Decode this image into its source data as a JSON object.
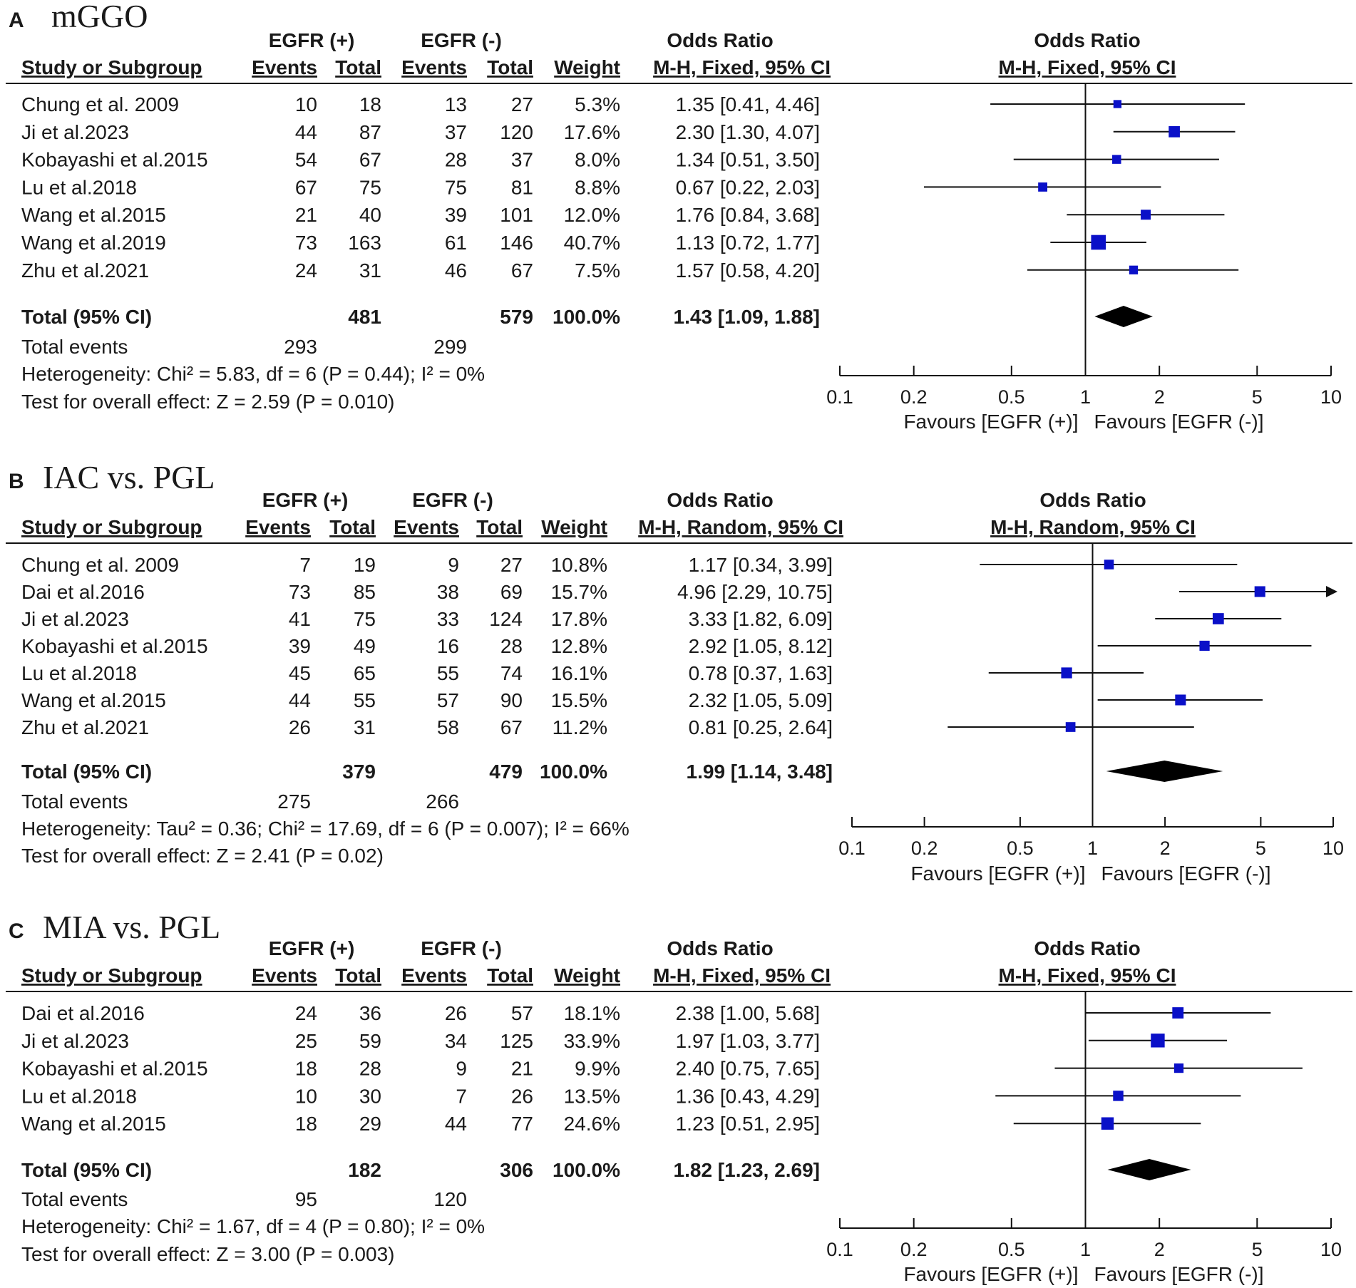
{
  "chart_data": [
    {
      "type": "forest",
      "panel": "A",
      "title": "mGGO",
      "group_plus": "EGFR (+)",
      "group_minus": "EGFR (-)",
      "col_study": "Study or Subgroup",
      "col_events": "Events",
      "col_total": "Total",
      "col_weight": "Weight",
      "or_header": "Odds Ratio",
      "method": "M-H, Fixed, 95% CI",
      "studies": [
        {
          "name": "Chung et al. 2009",
          "e1": "10",
          "t1": "18",
          "e2": "13",
          "t2": "27",
          "weight": "5.3%",
          "ci_text": "1.35 [0.41, 4.46]",
          "or": 1.35,
          "lo": 0.41,
          "hi": 4.46,
          "w": 5.3
        },
        {
          "name": "Ji et al.2023",
          "e1": "44",
          "t1": "87",
          "e2": "37",
          "t2": "120",
          "weight": "17.6%",
          "ci_text": "2.30 [1.30, 4.07]",
          "or": 2.3,
          "lo": 1.3,
          "hi": 4.07,
          "w": 17.6
        },
        {
          "name": "Kobayashi et al.2015",
          "e1": "54",
          "t1": "67",
          "e2": "28",
          "t2": "37",
          "weight": "8.0%",
          "ci_text": "1.34 [0.51, 3.50]",
          "or": 1.34,
          "lo": 0.51,
          "hi": 3.5,
          "w": 8.0
        },
        {
          "name": "Lu et al.2018",
          "e1": "67",
          "t1": "75",
          "e2": "75",
          "t2": "81",
          "weight": "8.8%",
          "ci_text": "0.67 [0.22, 2.03]",
          "or": 0.67,
          "lo": 0.22,
          "hi": 2.03,
          "w": 8.8
        },
        {
          "name": "Wang et al.2015",
          "e1": "21",
          "t1": "40",
          "e2": "39",
          "t2": "101",
          "weight": "12.0%",
          "ci_text": "1.76 [0.84, 3.68]",
          "or": 1.76,
          "lo": 0.84,
          "hi": 3.68,
          "w": 12.0
        },
        {
          "name": "Wang et al.2019",
          "e1": "73",
          "t1": "163",
          "e2": "61",
          "t2": "146",
          "weight": "40.7%",
          "ci_text": "1.13 [0.72, 1.77]",
          "or": 1.13,
          "lo": 0.72,
          "hi": 1.77,
          "w": 40.7
        },
        {
          "name": "Zhu et al.2021",
          "e1": "24",
          "t1": "31",
          "e2": "46",
          "t2": "67",
          "weight": "7.5%",
          "ci_text": "1.57 [0.58, 4.20]",
          "or": 1.57,
          "lo": 0.58,
          "hi": 4.2,
          "w": 7.5
        }
      ],
      "total": {
        "label": "Total (95% CI)",
        "t1": "481",
        "t2": "579",
        "weight": "100.0%",
        "ci_text": "1.43 [1.09, 1.88]",
        "or": 1.43,
        "lo": 1.09,
        "hi": 1.88
      },
      "total_events": {
        "label": "Total events",
        "e1": "293",
        "e2": "299"
      },
      "heterogeneity": "Heterogeneity: Chi² = 5.83, df = 6 (P = 0.44); I² = 0%",
      "overall": "Test for overall effect: Z = 2.59 (P = 0.010)",
      "axis_ticks": [
        {
          "v": 0.1,
          "label": "0.1"
        },
        {
          "v": 0.2,
          "label": "0.2"
        },
        {
          "v": 0.5,
          "label": "0.5"
        },
        {
          "v": 1,
          "label": "1"
        },
        {
          "v": 2,
          "label": "2"
        },
        {
          "v": 5,
          "label": "5"
        },
        {
          "v": 10,
          "label": "10"
        }
      ],
      "xlim": [
        0.1,
        10
      ],
      "favours_left": "Favours [EGFR (+)]",
      "favours_right": "Favours [EGFR (-)]"
    },
    {
      "type": "forest",
      "panel": "B",
      "title": "IAC vs. PGL",
      "group_plus": "EGFR (+)",
      "group_minus": "EGFR (-)",
      "col_study": "Study or Subgroup",
      "col_events": "Events",
      "col_total": "Total",
      "col_weight": "Weight",
      "or_header": "Odds Ratio",
      "method": "M-H, Random, 95% CI",
      "studies": [
        {
          "name": "Chung et al. 2009",
          "e1": "7",
          "t1": "19",
          "e2": "9",
          "t2": "27",
          "weight": "10.8%",
          "ci_text": "1.17 [0.34, 3.99]",
          "or": 1.17,
          "lo": 0.34,
          "hi": 3.99,
          "w": 10.8
        },
        {
          "name": "Dai et al.2016",
          "e1": "73",
          "t1": "85",
          "e2": "38",
          "t2": "69",
          "weight": "15.7%",
          "ci_text": "4.96 [2.29, 10.75]",
          "or": 4.96,
          "lo": 2.29,
          "hi": 10.75,
          "w": 15.7
        },
        {
          "name": "Ji et al.2023",
          "e1": "41",
          "t1": "75",
          "e2": "33",
          "t2": "124",
          "weight": "17.8%",
          "ci_text": "3.33 [1.82, 6.09]",
          "or": 3.33,
          "lo": 1.82,
          "hi": 6.09,
          "w": 17.8
        },
        {
          "name": "Kobayashi et al.2015",
          "e1": "39",
          "t1": "49",
          "e2": "16",
          "t2": "28",
          "weight": "12.8%",
          "ci_text": "2.92 [1.05, 8.12]",
          "or": 2.92,
          "lo": 1.05,
          "hi": 8.12,
          "w": 12.8
        },
        {
          "name": "Lu et al.2018",
          "e1": "45",
          "t1": "65",
          "e2": "55",
          "t2": "74",
          "weight": "16.1%",
          "ci_text": "0.78 [0.37, 1.63]",
          "or": 0.78,
          "lo": 0.37,
          "hi": 1.63,
          "w": 16.1
        },
        {
          "name": "Wang et al.2015",
          "e1": "44",
          "t1": "55",
          "e2": "57",
          "t2": "90",
          "weight": "15.5%",
          "ci_text": "2.32 [1.05, 5.09]",
          "or": 2.32,
          "lo": 1.05,
          "hi": 5.09,
          "w": 15.5
        },
        {
          "name": "Zhu et al.2021",
          "e1": "26",
          "t1": "31",
          "e2": "58",
          "t2": "67",
          "weight": "11.2%",
          "ci_text": "0.81 [0.25, 2.64]",
          "or": 0.81,
          "lo": 0.25,
          "hi": 2.64,
          "w": 11.2
        }
      ],
      "total": {
        "label": "Total (95% CI)",
        "t1": "379",
        "t2": "479",
        "weight": "100.0%",
        "ci_text": "1.99 [1.14, 3.48]",
        "or": 1.99,
        "lo": 1.14,
        "hi": 3.48
      },
      "total_events": {
        "label": "Total events",
        "e1": "275",
        "e2": "266"
      },
      "heterogeneity": "Heterogeneity: Tau² = 0.36; Chi² = 17.69, df = 6 (P = 0.007); I² = 66%",
      "overall": "Test for overall effect: Z = 2.41 (P = 0.02)",
      "axis_ticks": [
        {
          "v": 0.1,
          "label": "0.1"
        },
        {
          "v": 0.2,
          "label": "0.2"
        },
        {
          "v": 0.5,
          "label": "0.5"
        },
        {
          "v": 1,
          "label": "1"
        },
        {
          "v": 2,
          "label": "2"
        },
        {
          "v": 5,
          "label": "5"
        },
        {
          "v": 10,
          "label": "10"
        }
      ],
      "xlim": [
        0.1,
        10
      ],
      "favours_left": "Favours [EGFR (+)]",
      "favours_right": "Favours [EGFR (-)]"
    },
    {
      "type": "forest",
      "panel": "C",
      "title": "MIA vs. PGL",
      "group_plus": "EGFR (+)",
      "group_minus": "EGFR (-)",
      "col_study": "Study or Subgroup",
      "col_events": "Events",
      "col_total": "Total",
      "col_weight": "Weight",
      "or_header": "Odds Ratio",
      "method": "M-H, Fixed, 95% CI",
      "studies": [
        {
          "name": "Dai et al.2016",
          "e1": "24",
          "t1": "36",
          "e2": "26",
          "t2": "57",
          "weight": "18.1%",
          "ci_text": "2.38 [1.00, 5.68]",
          "or": 2.38,
          "lo": 1.0,
          "hi": 5.68,
          "w": 18.1
        },
        {
          "name": "Ji et al.2023",
          "e1": "25",
          "t1": "59",
          "e2": "34",
          "t2": "125",
          "weight": "33.9%",
          "ci_text": "1.97 [1.03, 3.77]",
          "or": 1.97,
          "lo": 1.03,
          "hi": 3.77,
          "w": 33.9
        },
        {
          "name": "Kobayashi et al.2015",
          "e1": "18",
          "t1": "28",
          "e2": "9",
          "t2": "21",
          "weight": "9.9%",
          "ci_text": "2.40 [0.75, 7.65]",
          "or": 2.4,
          "lo": 0.75,
          "hi": 7.65,
          "w": 9.9
        },
        {
          "name": "Lu et al.2018",
          "e1": "10",
          "t1": "30",
          "e2": "7",
          "t2": "26",
          "weight": "13.5%",
          "ci_text": "1.36 [0.43, 4.29]",
          "or": 1.36,
          "lo": 0.43,
          "hi": 4.29,
          "w": 13.5
        },
        {
          "name": "Wang et al.2015",
          "e1": "18",
          "t1": "29",
          "e2": "44",
          "t2": "77",
          "weight": "24.6%",
          "ci_text": "1.23 [0.51, 2.95]",
          "or": 1.23,
          "lo": 0.51,
          "hi": 2.95,
          "w": 24.6
        }
      ],
      "total": {
        "label": "Total (95% CI)",
        "t1": "182",
        "t2": "306",
        "weight": "100.0%",
        "ci_text": "1.82 [1.23, 2.69]",
        "or": 1.82,
        "lo": 1.23,
        "hi": 2.69
      },
      "total_events": {
        "label": "Total events",
        "e1": "95",
        "e2": "120"
      },
      "heterogeneity": "Heterogeneity: Chi² = 1.67, df = 4 (P = 0.80); I² = 0%",
      "overall": "Test for overall effect: Z = 3.00 (P = 0.003)",
      "axis_ticks": [
        {
          "v": 0.1,
          "label": "0.1"
        },
        {
          "v": 0.2,
          "label": "0.2"
        },
        {
          "v": 0.5,
          "label": "0.5"
        },
        {
          "v": 1,
          "label": "1"
        },
        {
          "v": 2,
          "label": "2"
        },
        {
          "v": 5,
          "label": "5"
        },
        {
          "v": 10,
          "label": "10"
        }
      ],
      "xlim": [
        0.1,
        10
      ],
      "favours_left": "Favours [EGFR (+)]",
      "favours_right": "Favours [EGFR (-)]"
    }
  ],
  "colors": {
    "marker": "#0a10c8",
    "line": "#111111",
    "diamond": "#000000"
  }
}
